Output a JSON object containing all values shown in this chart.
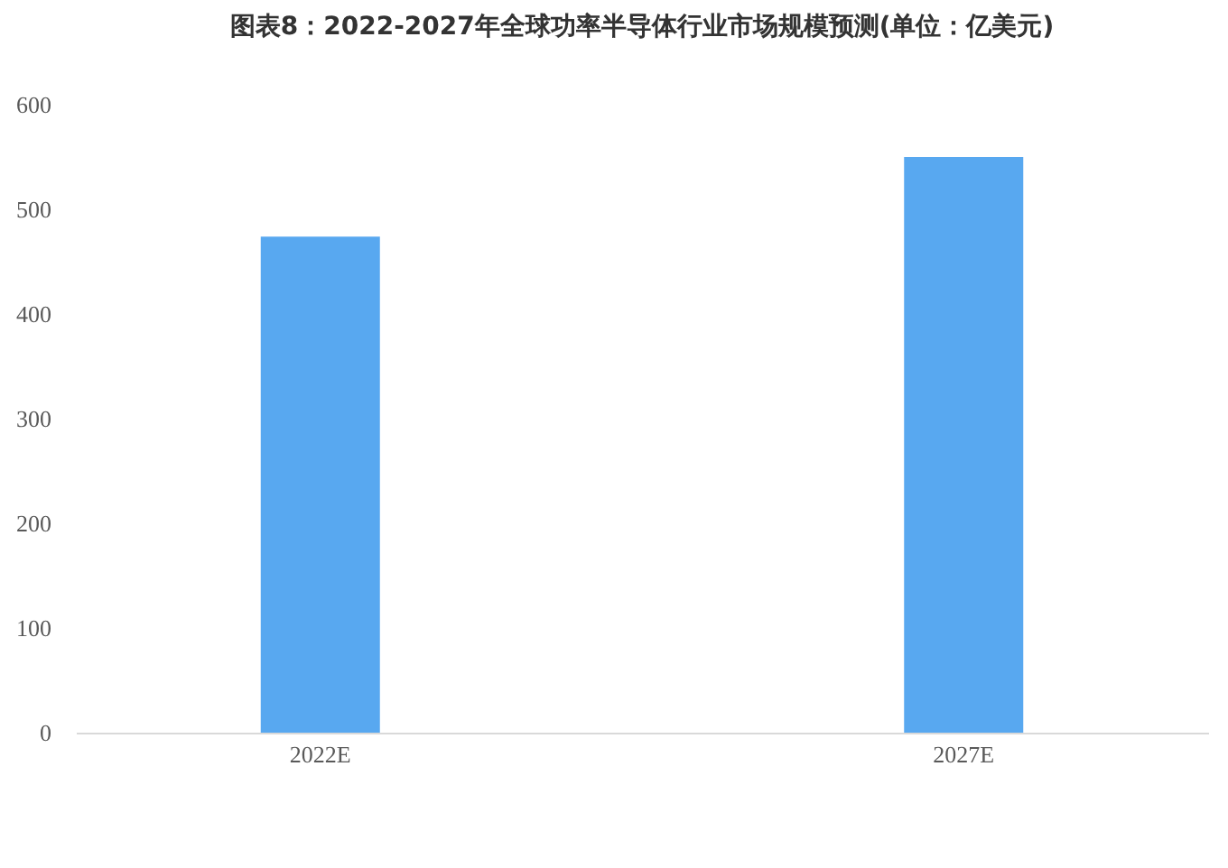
{
  "chart_data": {
    "type": "bar",
    "title": "图表8：2022-2027年全球功率半导体行业市场规模预测(单位：亿美元)",
    "categories": [
      "2022E",
      "2027E"
    ],
    "values": [
      474,
      550
    ],
    "color": "#58a8f0",
    "ylim": [
      0,
      600
    ],
    "yticks": [
      0,
      100,
      200,
      300,
      400,
      500,
      600
    ],
    "grid": false
  }
}
